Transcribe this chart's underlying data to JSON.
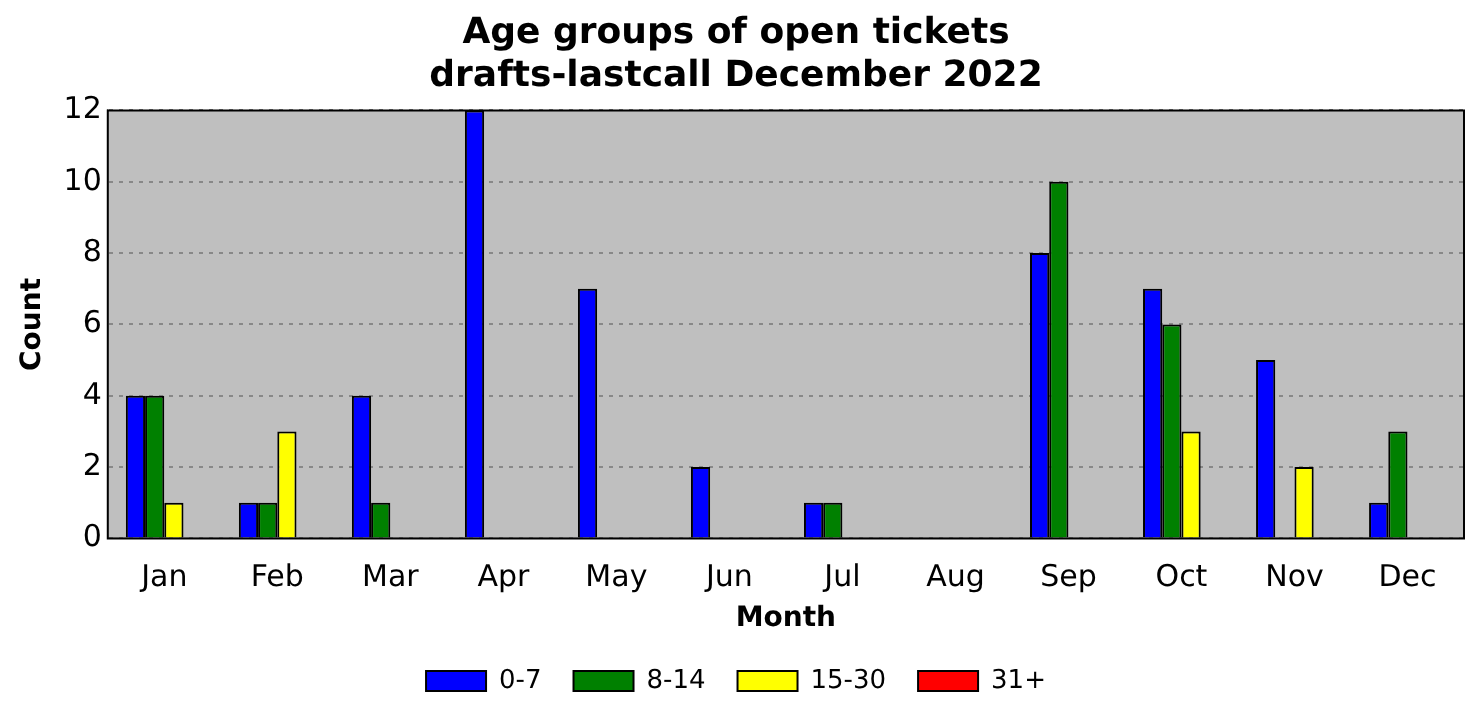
{
  "chart_data": {
    "type": "bar",
    "title": [
      "Age groups of open tickets",
      "drafts-lastcall December 2022"
    ],
    "xlabel": "Month",
    "ylabel": "Count",
    "categories": [
      "Jan",
      "Feb",
      "Mar",
      "Apr",
      "May",
      "Jun",
      "Jul",
      "Aug",
      "Sep",
      "Oct",
      "Nov",
      "Dec"
    ],
    "series": [
      {
        "name": "0-7",
        "color": "#0000ff",
        "values": [
          4,
          1,
          4,
          12,
          7,
          2,
          1,
          0,
          8,
          7,
          5,
          1
        ]
      },
      {
        "name": "8-14",
        "color": "#008000",
        "values": [
          4,
          1,
          1,
          0,
          0,
          0,
          1,
          0,
          10,
          6,
          0,
          3
        ]
      },
      {
        "name": "15-30",
        "color": "#ffff00",
        "values": [
          1,
          3,
          0,
          0,
          0,
          0,
          0,
          0,
          0,
          3,
          2,
          0
        ]
      },
      {
        "name": "31+",
        "color": "#ff0000",
        "values": [
          0,
          0,
          0,
          0,
          0,
          0,
          0,
          0,
          0,
          0,
          0,
          0
        ]
      }
    ],
    "ylim": [
      0,
      12
    ],
    "yticks": [
      0,
      2,
      4,
      6,
      8,
      10,
      12
    ],
    "grid": "y",
    "legend": "bottom"
  }
}
